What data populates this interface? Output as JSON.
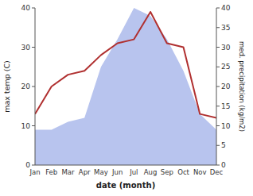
{
  "chart_data": {
    "type": "line",
    "xlabel": "date (month)",
    "ylabel": "max temp (C)",
    "y2label": "med. precipitation (kg/m2)",
    "categories": [
      "Jan",
      "Feb",
      "Mar",
      "Apr",
      "May",
      "Jun",
      "Jul",
      "Aug",
      "Sep",
      "Oct",
      "Nov",
      "Dec"
    ],
    "series": [
      {
        "type": "area",
        "axis": "y2",
        "color": "#b8c4ee",
        "values": [
          9,
          9,
          11,
          12,
          25,
          32,
          40,
          38,
          32,
          24,
          13,
          9
        ]
      },
      {
        "type": "line",
        "color": "#b03030",
        "values": [
          13,
          20,
          23,
          24,
          28,
          31,
          32,
          39,
          31,
          30,
          13,
          12
        ]
      }
    ],
    "ylim": [
      0,
      40
    ],
    "yticks": [
      0,
      10,
      20,
      30,
      40
    ],
    "y2lim": [
      0,
      40
    ],
    "y2ticks": [
      0,
      5,
      10,
      15,
      20,
      25,
      30,
      35,
      40
    ],
    "grid": false
  }
}
